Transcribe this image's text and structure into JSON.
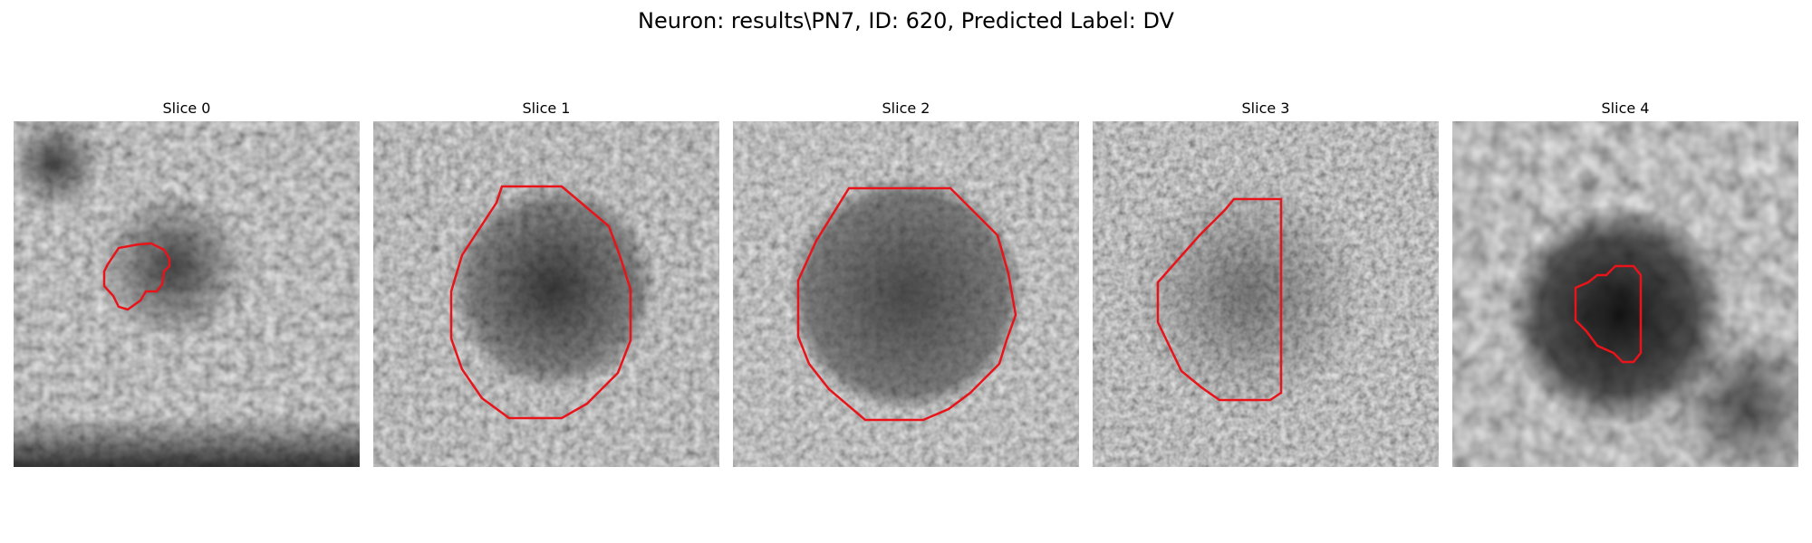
{
  "figure": {
    "title": "Neuron: results\\PN7, ID: 620, Predicted Label: DV"
  },
  "contour_color": "#e8141a",
  "panels": [
    {
      "title": "Slice 0",
      "depicts": "noisy grayscale microscopy patch with dark blob left-center, small red contour around it"
    },
    {
      "title": "Slice 1",
      "depicts": "noisy grayscale patch with large dark round cell, red octagonal contour"
    },
    {
      "title": "Slice 2",
      "depicts": "noisy grayscale patch with dark round cell, red near-circular contour"
    },
    {
      "title": "Slice 3",
      "depicts": "noisy grayscale patch, red tall polygon contour slightly right of center"
    },
    {
      "title": "Slice 4",
      "depicts": "blurry grayscale patch with very dark center blob, small red contour"
    }
  ]
}
